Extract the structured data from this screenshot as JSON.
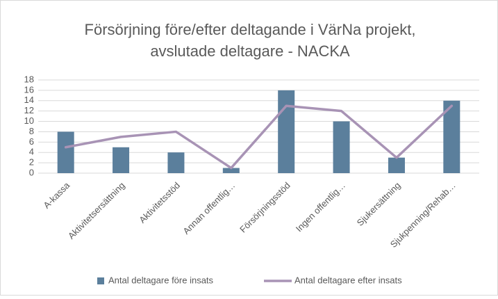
{
  "chart_data": {
    "type": "bar",
    "title": [
      "Försörjning före/efter deltagande i VärNa projekt,",
      "avslutade deltagare - NACKA"
    ],
    "categories": [
      "A-kassa",
      "Aktivitetsersättning",
      "Aktivitetsstöd",
      "Annan offentlig…",
      "Försörjningsstöd",
      "Ingen offentlig…",
      "Sjukersättning",
      "Sjukpenning/Rehab…"
    ],
    "series": [
      {
        "name": "Antal deltagare före insats",
        "type": "bar",
        "color": "#5b7f9c",
        "values": [
          8,
          5,
          4,
          1,
          16,
          10,
          3,
          14
        ]
      },
      {
        "name": "Antal deltagare efter insats",
        "type": "line",
        "color": "#a893b5",
        "values": [
          5,
          7,
          8,
          1,
          13,
          12,
          3,
          13
        ]
      }
    ],
    "ylim": [
      0,
      18
    ],
    "yticks": [
      0,
      2,
      4,
      6,
      8,
      10,
      12,
      14,
      16,
      18
    ],
    "grid": true,
    "legend": "bottom"
  }
}
